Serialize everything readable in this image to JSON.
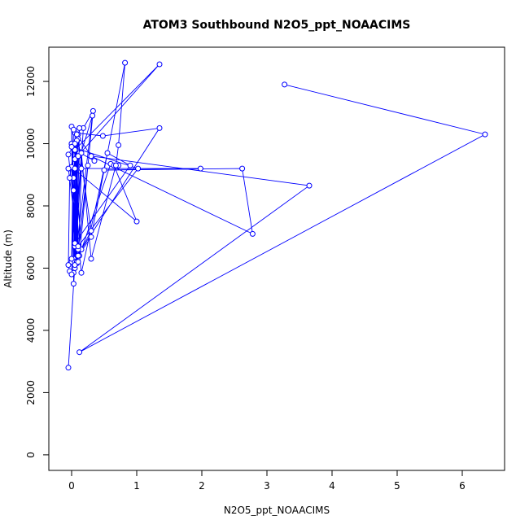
{
  "chart_data": {
    "type": "line",
    "title": "ATOM3 Southbound N2O5_ppt_NOAACIMS",
    "xlabel": "N2O5_ppt_NOAACIMS",
    "ylabel": "Altitude (m)",
    "xlim": [
      -0.35,
      6.65
    ],
    "ylim": [
      -500,
      13100
    ],
    "xticks": [
      0,
      1,
      2,
      3,
      4,
      5,
      6
    ],
    "yticks": [
      0,
      2000,
      4000,
      6000,
      8000,
      10000,
      12000
    ],
    "grid": false,
    "legend": "none",
    "color": "#0000ff",
    "series": [
      {
        "x": [
          -0.05,
          0.05,
          0.12,
          0.08,
          0.03,
          0.1,
          0.0,
          0.05,
          0.0,
          0.05,
          0.18,
          0.33,
          0.12,
          0.6,
          0.72,
          0.65,
          1.0,
          0.0,
          0.05,
          0.15,
          0.3,
          0.68,
          0.72,
          0.82,
          0.3,
          0.1,
          0.05,
          0.48,
          1.35,
          0.15,
          0.05,
          1.35,
          0.05,
          0.03,
          0.1,
          0.3,
          0.05,
          0.32,
          0.03,
          0.08,
          0.05,
          0.1,
          0.03,
          0.0,
          0.08,
          0.25,
          0.1,
          0.0,
          0.05,
          0.9,
          0.55,
          0.15,
          -0.05,
          0.05,
          -0.03,
          -0.05,
          -0.03,
          0.0,
          0.05,
          0.35,
          0.03,
          0.0,
          0.08,
          0.12,
          0.05,
          0.03,
          0.05,
          0.08,
          0.1,
          0.15,
          0.0,
          1.02,
          0.1,
          -0.05,
          1.98,
          0.5,
          2.62,
          2.78,
          0.3,
          3.65,
          0.12,
          6.35,
          3.27
        ],
        "y": [
          2800,
          6100,
          9700,
          10400,
          6300,
          10300,
          6200,
          9800,
          10000,
          6000,
          10500,
          11050,
          6400,
          9350,
          9300,
          9300,
          7500,
          9250,
          6700,
          9700,
          6300,
          9300,
          9950,
          12600,
          7000,
          6400,
          10350,
          10250,
          10500,
          6600,
          9500,
          12550,
          9800,
          8500,
          10150,
          7200,
          6200,
          10900,
          8900,
          10100,
          6200,
          9600,
          5850,
          10550,
          6150,
          9300,
          6600,
          10000,
          6800,
          9300,
          9700,
          5850,
          9650,
          10000,
          8900,
          6100,
          5900,
          5800,
          9800,
          9450,
          10450,
          6300,
          6200,
          10500,
          9200,
          5500,
          6100,
          10300,
          6200,
          9200,
          9900,
          9200,
          6700,
          9200,
          9200,
          9150,
          9200,
          7100,
          9600,
          8650,
          3300,
          10300,
          11900
        ]
      }
    ]
  }
}
